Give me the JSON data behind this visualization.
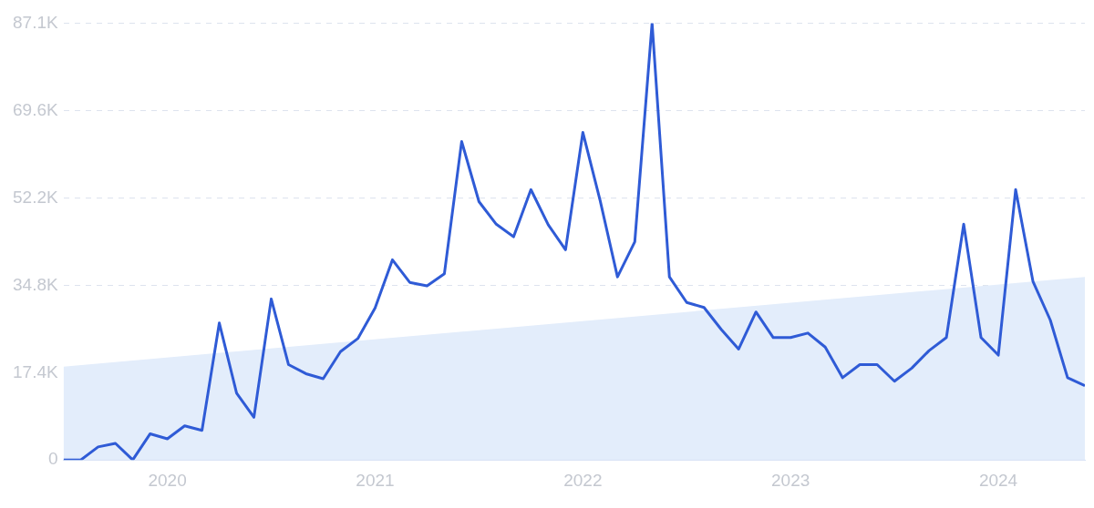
{
  "chart_data": {
    "type": "line",
    "xlim": [
      "2019-07",
      "2024-06"
    ],
    "ylim": [
      0,
      87.1
    ],
    "xticks": [
      {
        "value": "2020-01",
        "label": "2020"
      },
      {
        "value": "2021-01",
        "label": "2021"
      },
      {
        "value": "2022-01",
        "label": "2022"
      },
      {
        "value": "2023-01",
        "label": "2023"
      },
      {
        "value": "2024-01",
        "label": "2024"
      }
    ],
    "yticks": [
      0,
      {
        "value": 17.4,
        "label": "17.4K"
      },
      {
        "value": 34.8,
        "label": "34.8K"
      },
      {
        "value": 52.2,
        "label": "52.2K"
      },
      {
        "value": 69.6,
        "label": "69.6K"
      },
      {
        "value": 87.1,
        "label": "87.1K"
      }
    ],
    "grid": "y",
    "legend": false,
    "marker": "none",
    "line_style": "solid",
    "x": [
      "2019-07",
      "2019-08",
      "2019-09",
      "2019-10",
      "2019-11",
      "2019-12",
      "2020-01",
      "2020-02",
      "2020-03",
      "2020-04",
      "2020-05",
      "2020-06",
      "2020-07",
      "2020-08",
      "2020-09",
      "2020-10",
      "2020-11",
      "2020-12",
      "2021-01",
      "2021-02",
      "2021-03",
      "2021-04",
      "2021-05",
      "2021-06",
      "2021-07",
      "2021-08",
      "2021-09",
      "2021-10",
      "2021-11",
      "2021-12",
      "2022-01",
      "2022-02",
      "2022-03",
      "2022-04",
      "2022-05",
      "2022-06",
      "2022-07",
      "2022-08",
      "2022-09",
      "2022-10",
      "2022-11",
      "2022-12",
      "2023-01",
      "2023-02",
      "2023-03",
      "2023-04",
      "2023-05",
      "2023-06",
      "2023-07",
      "2023-08",
      "2023-09",
      "2023-10",
      "2023-11",
      "2023-12",
      "2024-01",
      "2024-02",
      "2024-03",
      "2024-04",
      "2024-05",
      "2024-06"
    ],
    "series": [
      {
        "type": "area",
        "color": "#e3edfb",
        "x": [
          "2019-07",
          "2024-06"
        ],
        "values": [
          18.6,
          36.5
        ]
      },
      {
        "type": "line",
        "color": "#2f5bd6",
        "values": [
          0,
          0,
          2.6,
          3.3,
          0,
          5.2,
          4.2,
          6.8,
          5.9,
          27.3,
          13.3,
          8.5,
          32.1,
          19.0,
          17.2,
          16.2,
          21.6,
          24.2,
          30.3,
          39.9,
          35.4,
          34.7,
          37.1,
          63.5,
          51.5,
          47.0,
          44.5,
          53.9,
          46.9,
          41.9,
          65.3,
          51.7,
          36.5,
          43.5,
          87.1,
          36.5,
          31.4,
          30.4,
          26.0,
          22.1,
          29.5,
          24.4,
          24.4,
          25.3,
          22.5,
          16.4,
          19.0,
          19.0,
          15.7,
          18.3,
          21.8,
          24.4,
          47.0,
          24.4,
          20.9,
          53.9,
          35.6,
          27.9,
          16.4,
          14.8
        ]
      }
    ]
  }
}
